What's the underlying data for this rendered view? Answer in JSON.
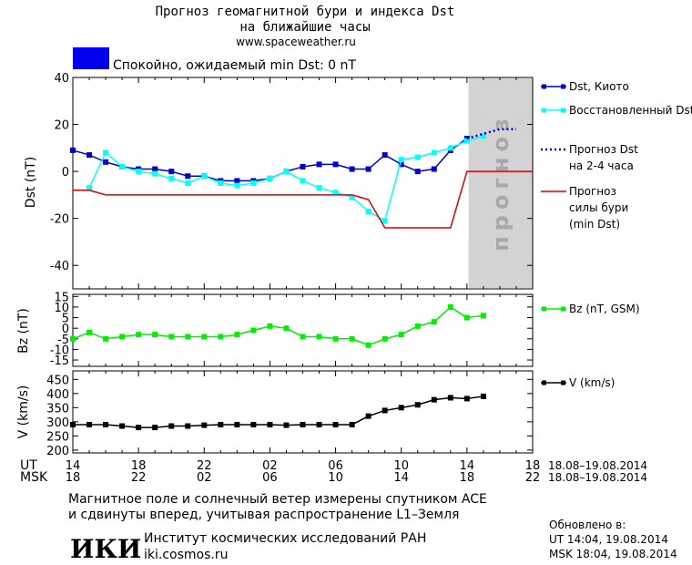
{
  "header": {
    "title_line1": "Прогноз геомагнитной бури и индекса Dst",
    "title_line2": "на ближайшие часы",
    "url": "www.spaceweather.ru",
    "status_text": "Спокойно, ожидаемый min Dst: 0 nT",
    "status_color": "#0000ee"
  },
  "footer": {
    "note_line1": "Магнитное поле и солнечный ветер измерены спутником ACE",
    "note_line2": "и сдвинуты вперед, учитывая распространение L1–Земля",
    "institute_logo": "ИКИ",
    "institute_name": "Институт космических исследований РАН",
    "institute_url": "iki.cosmos.ru",
    "updated_label": "Обновлено в:",
    "updated_ut": "UT  14:04, 19.08.2014",
    "updated_msk": "MSK 18:04, 19.08.2014"
  },
  "chart_data": [
    {
      "type": "line",
      "ylabel": "Dst (nT)",
      "ylim": [
        -50,
        40
      ],
      "yticks": [
        -40,
        -20,
        0,
        20,
        40
      ],
      "xlim": [
        14,
        42
      ],
      "forecast_band": {
        "x_from": 38.1,
        "x_to": 42,
        "label": "прогноз",
        "color": "#d3d3d3"
      },
      "series": [
        {
          "name": "Dst, Киото",
          "color": "#0000cc",
          "style": "solid-square",
          "x": [
            14,
            15,
            16,
            17,
            18,
            19,
            20,
            21,
            22,
            23,
            24,
            25,
            26,
            27,
            28,
            29,
            30,
            31,
            32,
            33,
            34,
            35,
            36,
            37,
            38
          ],
          "y": [
            9,
            7,
            4,
            2,
            1,
            1,
            0,
            -2,
            -2,
            -4,
            -4,
            -4,
            -3,
            0,
            2,
            3,
            3,
            1,
            1,
            7,
            3,
            0,
            1,
            9,
            14
          ]
        },
        {
          "name": "Восстановленный Dst",
          "color": "#00ffff",
          "style": "solid-square",
          "x": [
            15,
            16,
            17,
            18,
            19,
            20,
            21,
            22,
            23,
            24,
            25,
            26,
            27,
            28,
            29,
            30,
            31,
            32,
            33,
            34,
            35,
            36,
            37,
            38,
            39
          ],
          "y": [
            -7,
            8,
            2,
            0,
            -1,
            -3,
            -5,
            -2,
            -5,
            -6,
            -5,
            -3,
            0,
            -4,
            -7,
            -9,
            -11,
            -17,
            -21,
            5,
            6,
            8,
            10,
            13,
            15
          ]
        },
        {
          "name": "Прогноз Dst\nна 2-4 часа",
          "color": "#0000cc",
          "style": "dotted",
          "x": [
            38,
            39,
            40,
            41
          ],
          "y": [
            14,
            16,
            18,
            18
          ]
        },
        {
          "name": "Прогноз\nсилы бури\n(min Dst)",
          "color": "#dd0000",
          "style": "step",
          "x": [
            14,
            15,
            16,
            31,
            32,
            33,
            34,
            35,
            36,
            37,
            38,
            42
          ],
          "y": [
            -8,
            -8,
            -10,
            -10,
            -12,
            -24,
            -24,
            -24,
            -24,
            -24,
            0,
            0
          ]
        }
      ]
    },
    {
      "type": "line",
      "ylabel": "Bz (nT)",
      "ylim": [
        -18,
        16
      ],
      "yticks": [
        -15,
        -10,
        -5,
        0,
        5,
        10,
        15
      ],
      "series": [
        {
          "name": "Bz (nT, GSM)",
          "color": "#00ee00",
          "x": [
            14,
            15,
            16,
            17,
            18,
            19,
            20,
            21,
            22,
            23,
            24,
            25,
            26,
            27,
            28,
            29,
            30,
            31,
            32,
            33,
            34,
            35,
            36,
            37,
            38,
            39
          ],
          "y": [
            -5,
            -2,
            -5,
            -4,
            -3,
            -3,
            -4,
            -4,
            -4,
            -4,
            -3,
            -1,
            1,
            0,
            -4,
            -4,
            -5,
            -5,
            -8,
            -5,
            -3,
            1,
            3,
            10,
            5,
            6
          ]
        }
      ]
    },
    {
      "type": "line",
      "ylabel": "V (km/s)",
      "ylim": [
        190,
        480
      ],
      "yticks": [
        200,
        250,
        300,
        350,
        400,
        450
      ],
      "series": [
        {
          "name": "V (km/s)",
          "color": "#000000",
          "x": [
            14,
            15,
            16,
            17,
            18,
            19,
            20,
            21,
            22,
            23,
            24,
            25,
            26,
            27,
            28,
            29,
            30,
            31,
            32,
            33,
            34,
            35,
            36,
            37,
            38,
            39
          ],
          "y": [
            290,
            290,
            290,
            285,
            280,
            280,
            285,
            285,
            288,
            290,
            290,
            290,
            290,
            288,
            290,
            290,
            290,
            290,
            320,
            340,
            350,
            360,
            378,
            385,
            382,
            390
          ]
        }
      ]
    }
  ],
  "x_axis": {
    "ut_label": "UT",
    "msk_label": "MSK",
    "ut_ticks": [
      "14",
      "18",
      "22",
      "02",
      "06",
      "10",
      "14",
      "18"
    ],
    "msk_ticks": [
      "18",
      "22",
      "02",
      "06",
      "10",
      "14",
      "18",
      "22"
    ],
    "ut_dates": "18.08–19.08.2014",
    "msk_dates": "18.08–19.08.2014"
  }
}
